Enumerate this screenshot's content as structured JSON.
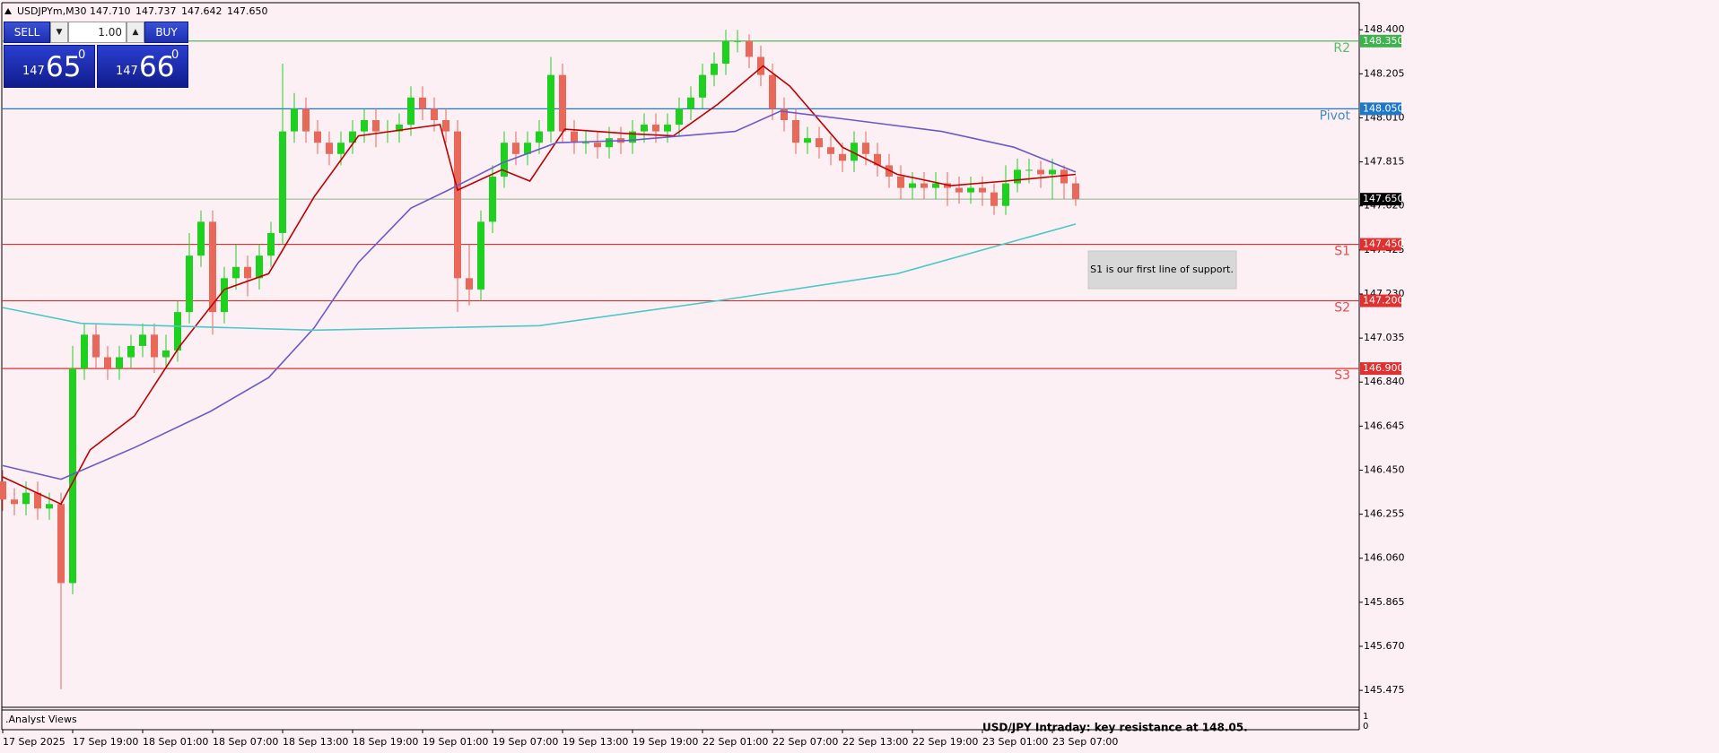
{
  "header": {
    "symbol": "USDJPYm,M30",
    "quote": [
      "147.710",
      "147.737",
      "147.642",
      "147.650"
    ]
  },
  "trade_panel": {
    "sell": "SELL",
    "volume": "1.00",
    "buy": "BUY",
    "bid_big": "147",
    "bid_main": "65",
    "bid_sup": "0",
    "ask_big": "147",
    "ask_main": "66",
    "ask_sup": "0"
  },
  "chart_data": {
    "type": "candlestick",
    "categories": [
      "17 Sep 2025",
      null,
      null,
      null,
      null,
      null,
      "17 Sep 19:00",
      null,
      null,
      null,
      null,
      null,
      "18 Sep 01:00",
      null,
      null,
      null,
      null,
      null,
      "18 Sep 07:00",
      null,
      null,
      null,
      null,
      null,
      "18 Sep 13:00",
      null,
      null,
      null,
      null,
      null,
      "18 Sep 19:00",
      null,
      null,
      null,
      null,
      null,
      "19 Sep 01:00",
      null,
      null,
      null,
      null,
      null,
      "19 Sep 07:00",
      null,
      null,
      null,
      null,
      null,
      "19 Sep 13:00",
      null,
      null,
      null,
      null,
      null,
      "19 Sep 19:00",
      null,
      null,
      null,
      null,
      null,
      "22 Sep 01:00",
      null,
      null,
      null,
      null,
      null,
      "22 Sep 07:00",
      null,
      null,
      null,
      null,
      null,
      "22 Sep 13:00",
      null,
      null,
      null,
      null,
      null,
      "22 Sep 19:00",
      null,
      null,
      null,
      null,
      null,
      "23 Sep 01:00",
      null,
      null,
      null,
      null,
      null,
      "23 Sep 07:00",
      null,
      null
    ],
    "open": [
      146.4,
      146.32,
      146.3,
      146.35,
      146.28,
      146.3,
      145.95,
      146.9,
      147.05,
      146.95,
      146.9,
      146.95,
      147.0,
      147.05,
      146.95,
      146.98,
      147.15,
      147.4,
      147.55,
      147.15,
      147.3,
      147.35,
      147.3,
      147.4,
      147.5,
      147.95,
      148.05,
      147.95,
      147.9,
      147.85,
      147.9,
      147.95,
      148.0,
      147.95,
      147.95,
      147.98,
      148.1,
      148.05,
      148.0,
      147.95,
      147.3,
      147.25,
      147.55,
      147.75,
      147.9,
      147.85,
      147.9,
      147.95,
      148.2,
      147.95,
      147.9,
      147.9,
      147.88,
      147.92,
      147.9,
      147.95,
      147.98,
      147.95,
      147.98,
      148.05,
      148.1,
      148.2,
      148.25,
      148.35,
      148.35,
      148.28,
      148.2,
      148.05,
      148.0,
      147.9,
      147.92,
      147.88,
      147.85,
      147.82,
      147.9,
      147.85,
      147.8,
      147.75,
      147.7,
      147.72,
      147.7,
      147.72,
      147.7,
      147.68,
      147.7,
      147.68,
      147.62,
      147.72,
      147.78,
      147.78,
      147.76,
      147.78,
      147.72
    ],
    "high": [
      146.45,
      146.37,
      146.4,
      146.4,
      146.35,
      146.35,
      147.0,
      147.1,
      147.1,
      147.0,
      147.0,
      147.05,
      147.1,
      147.1,
      147.05,
      147.2,
      147.5,
      147.6,
      147.6,
      147.35,
      147.45,
      147.4,
      147.45,
      147.55,
      148.25,
      148.12,
      148.1,
      148.0,
      147.95,
      147.95,
      148.0,
      148.05,
      148.05,
      148.0,
      148.03,
      148.15,
      148.15,
      148.1,
      148.05,
      148.0,
      147.45,
      147.6,
      147.8,
      147.95,
      147.95,
      147.95,
      148.0,
      148.28,
      148.25,
      148.0,
      147.95,
      147.95,
      147.97,
      147.97,
      148.0,
      148.03,
      148.03,
      148.03,
      148.1,
      148.15,
      148.25,
      148.3,
      148.4,
      148.4,
      148.38,
      148.33,
      148.25,
      148.1,
      148.05,
      147.97,
      147.97,
      147.93,
      147.9,
      147.95,
      147.95,
      147.9,
      147.85,
      147.8,
      147.77,
      147.77,
      147.77,
      147.77,
      147.75,
      147.75,
      147.75,
      147.72,
      147.8,
      147.83,
      147.83,
      147.82,
      147.83,
      147.8,
      147.75
    ],
    "low": [
      146.27,
      146.25,
      146.25,
      146.23,
      146.23,
      145.48,
      145.9,
      146.85,
      146.9,
      146.85,
      146.85,
      146.9,
      146.95,
      146.88,
      146.9,
      146.93,
      147.1,
      147.35,
      147.05,
      147.1,
      147.25,
      147.22,
      147.25,
      147.35,
      147.45,
      147.9,
      147.9,
      147.85,
      147.8,
      147.8,
      147.85,
      147.9,
      147.88,
      147.9,
      147.9,
      147.93,
      148.0,
      147.95,
      147.9,
      147.15,
      147.18,
      147.2,
      147.5,
      147.7,
      147.8,
      147.8,
      147.85,
      147.9,
      147.9,
      147.85,
      147.85,
      147.83,
      147.83,
      147.85,
      147.85,
      147.9,
      147.9,
      147.9,
      147.93,
      148.0,
      148.05,
      148.15,
      148.2,
      148.3,
      148.23,
      148.15,
      148.0,
      147.95,
      147.85,
      147.85,
      147.83,
      147.8,
      147.77,
      147.77,
      147.8,
      147.75,
      147.7,
      147.65,
      147.65,
      147.65,
      147.65,
      147.62,
      147.63,
      147.63,
      147.62,
      147.58,
      147.58,
      147.68,
      147.72,
      147.7,
      147.65,
      147.65,
      147.62
    ],
    "close": [
      146.32,
      146.3,
      146.35,
      146.28,
      146.3,
      145.95,
      146.9,
      147.05,
      146.95,
      146.9,
      146.95,
      147.0,
      147.05,
      146.95,
      146.98,
      147.15,
      147.4,
      147.55,
      147.15,
      147.3,
      147.35,
      147.3,
      147.4,
      147.5,
      147.95,
      148.05,
      147.95,
      147.9,
      147.85,
      147.9,
      147.95,
      148.0,
      147.95,
      147.95,
      147.98,
      148.1,
      148.05,
      148.0,
      147.95,
      147.3,
      147.25,
      147.55,
      147.75,
      147.9,
      147.85,
      147.9,
      147.95,
      148.2,
      147.95,
      147.9,
      147.9,
      147.88,
      147.92,
      147.9,
      147.95,
      147.98,
      147.95,
      147.98,
      148.05,
      148.1,
      148.2,
      148.25,
      148.35,
      148.35,
      148.28,
      148.2,
      148.05,
      148.0,
      147.9,
      147.92,
      147.88,
      147.85,
      147.82,
      147.9,
      147.85,
      147.8,
      147.75,
      147.7,
      147.72,
      147.7,
      147.72,
      147.7,
      147.68,
      147.7,
      147.68,
      147.62,
      147.72,
      147.78,
      147.78,
      147.76,
      147.78,
      147.72,
      147.65
    ],
    "up_color": "#1fd11f",
    "down_color": "#e8695a",
    "moving_averages": [
      {
        "color": "#c00000",
        "x": [
          0,
          5,
          7.5,
          11.3,
          15.2,
          19,
          22.8,
          26.7,
          30.5,
          37.5,
          39,
          42.8,
          45.2,
          48.2,
          53.6,
          57.5,
          61.3,
          65.2,
          67.5,
          72,
          76.7,
          81.3,
          86,
          92
        ],
        "values": [
          146.42,
          146.3,
          146.54,
          146.69,
          147.0,
          147.25,
          147.32,
          147.66,
          147.93,
          147.98,
          147.69,
          147.78,
          147.73,
          147.96,
          147.94,
          147.93,
          148.07,
          148.24,
          148.15,
          147.88,
          147.76,
          147.71,
          147.73,
          147.76
        ]
      },
      {
        "color": "#6a5acd",
        "x": [
          0,
          5,
          11.3,
          17.8,
          22.8,
          26.7,
          30.5,
          35,
          38.2,
          42.8,
          47.5,
          53.6,
          62.8,
          66.7,
          72.9,
          80.5,
          86.7,
          92
        ],
        "values": [
          146.47,
          146.41,
          146.55,
          146.71,
          146.86,
          147.08,
          147.37,
          147.61,
          147.69,
          147.81,
          147.9,
          147.91,
          147.95,
          148.04,
          148.0,
          147.95,
          147.88,
          147.77
        ]
      },
      {
        "color": "#4cc8c8",
        "x": [
          0,
          6.7,
          26.7,
          46,
          61.3,
          76.7,
          92
        ],
        "values": [
          147.17,
          147.1,
          147.07,
          147.09,
          147.2,
          147.32,
          147.54
        ]
      }
    ],
    "ylim": [
      145.4,
      148.52
    ],
    "yticks": [
      {
        "value": 148.4,
        "label": "148.400"
      },
      {
        "value": 148.205,
        "label": "148.205"
      },
      {
        "value": 148.01,
        "label": "148.010"
      },
      {
        "value": 147.815,
        "label": "147.815"
      },
      {
        "value": 147.62,
        "label": "147.620"
      },
      {
        "value": 147.425,
        "label": "147.425"
      },
      {
        "value": 147.23,
        "label": "147.230"
      },
      {
        "value": 147.035,
        "label": "147.035"
      },
      {
        "value": 146.84,
        "label": "146.840"
      },
      {
        "value": 146.645,
        "label": "146.645"
      },
      {
        "value": 146.45,
        "label": "146.450"
      },
      {
        "value": 146.255,
        "label": "146.255"
      },
      {
        "value": 146.06,
        "label": "146.060"
      },
      {
        "value": 145.865,
        "label": "145.865"
      },
      {
        "value": 145.67,
        "label": "145.670"
      },
      {
        "value": 145.475,
        "label": "145.475"
      }
    ],
    "levels": [
      {
        "name": "R2",
        "value": 148.35,
        "label": "148.350",
        "color": "#3cb44b"
      },
      {
        "name": "Pivot",
        "value": 148.05,
        "label": "148.050",
        "color": "#1e78c8"
      },
      {
        "name": "S1",
        "value": 147.45,
        "label": "147.450",
        "color": "#e03030"
      },
      {
        "name": "S2",
        "value": 147.2,
        "label": "147.200",
        "color": "#e03030"
      },
      {
        "name": "S3",
        "value": 146.9,
        "label": "146.900",
        "color": "#e03030"
      }
    ],
    "current_price": {
      "value": 147.65,
      "label": "147.650"
    },
    "annotation": "S1 is our first line of support.",
    "subwindow": {
      "title": ".Analyst Views",
      "text": "USD/JPY Intraday:  key resistance at 148.05.",
      "yticks": [
        1,
        0
      ]
    }
  }
}
